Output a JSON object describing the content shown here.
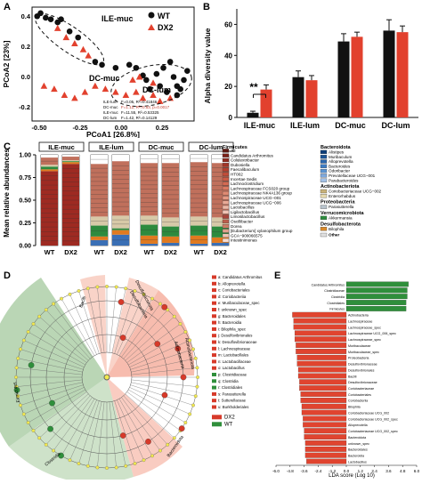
{
  "panels": {
    "A": {
      "letter": "A",
      "xlabel": "PCoA1 [26.8%]",
      "ylabel": "PCoA2 [23%]",
      "xticks": [
        "-0.50",
        "-0.25",
        "0.00",
        "0.25"
      ],
      "yticks": [
        "0.4",
        "0.2",
        "0.0",
        "-0.2"
      ],
      "legend": [
        {
          "name": "WT",
          "marker": "circle",
          "color": "#111111"
        },
        {
          "name": "DX2",
          "marker": "triangle",
          "color": "#e2412e"
        }
      ],
      "group_labels": [
        "ILE-muc",
        "DC-muc",
        "DC-lum"
      ],
      "stats": [
        {
          "name": "ILE-lum",
          "text": "F=0.05, R²=0.41846"
        },
        {
          "name": "DC-muc",
          "text": "F=1.12, R²=0.53, p=0.0017"
        },
        {
          "name": "ILE-muc",
          "text": "F=11.55, R²=0.53325"
        },
        {
          "name": "DC-lum",
          "text": "F=1.42, R²=0.14129"
        }
      ],
      "wt_points": [
        [
          -0.52,
          0.44
        ],
        [
          -0.5,
          0.46
        ],
        [
          -0.47,
          0.43
        ],
        [
          -0.44,
          0.42
        ],
        [
          -0.4,
          0.4
        ],
        [
          -0.38,
          0.42
        ],
        [
          -0.33,
          0.34
        ],
        [
          -0.28,
          0.3
        ],
        [
          -0.18,
          0.14
        ],
        [
          -0.14,
          0.12
        ],
        [
          -0.06,
          0.1
        ],
        [
          0.02,
          0.12
        ],
        [
          0.06,
          0.1
        ],
        [
          0.1,
          0.05
        ],
        [
          0.12,
          0.02
        ],
        [
          0.18,
          0.06
        ],
        [
          0.22,
          0.1
        ],
        [
          0.26,
          0.14
        ],
        [
          0.28,
          0.04
        ],
        [
          0.3,
          -0.02
        ],
        [
          0.32,
          -0.04
        ],
        [
          0.34,
          0.02
        ],
        [
          0.36,
          0.08
        ],
        [
          0.3,
          -0.08
        ],
        [
          0.2,
          -0.02
        ],
        [
          0.14,
          -0.04
        ],
        [
          0.24,
          -0.06
        ]
      ],
      "dx2_points": [
        [
          -0.35,
          0.3
        ],
        [
          -0.3,
          0.26
        ],
        [
          -0.25,
          0.22
        ],
        [
          -0.22,
          0.18
        ],
        [
          -0.4,
          0.36
        ],
        [
          -0.48,
          -0.02
        ],
        [
          -0.42,
          -0.04
        ],
        [
          -0.36,
          -0.08
        ],
        [
          -0.3,
          -0.1
        ],
        [
          -0.24,
          -0.06
        ],
        [
          -0.18,
          -0.02
        ],
        [
          -0.12,
          -0.04
        ],
        [
          -0.06,
          -0.06
        ],
        [
          0.0,
          -0.08
        ],
        [
          0.06,
          -0.06
        ],
        [
          0.1,
          -0.1
        ],
        [
          0.16,
          -0.08
        ],
        [
          0.2,
          -0.12
        ],
        [
          0.26,
          -0.1
        ],
        [
          0.04,
          0.02
        ],
        [
          0.08,
          0.04
        ],
        [
          0.16,
          0.0
        ]
      ]
    },
    "B": {
      "letter": "B",
      "ylabel": "Alpha diversity value",
      "yticks": [
        "0",
        "20",
        "40",
        "60"
      ],
      "ylim": [
        0,
        70
      ],
      "significance": "**"
    },
    "C": {
      "letter": "C",
      "ylabel": "Mean relative abundances",
      "yticks": [
        "1.00",
        "0.75",
        "0.50",
        "0.25",
        "0.00"
      ],
      "group_labels": [
        "ILE-muc",
        "ILE-lum",
        "DC-muc",
        "DC-lum"
      ],
      "bar_labels": [
        "WT",
        "DX2",
        "WT",
        "DX2",
        "WT",
        "DX2",
        "WT",
        "DX2"
      ],
      "legend_col1_title": "Firmicutes",
      "legend_col1": [
        "A2",
        "Candidatus Arthromitus",
        "Colidextribacter",
        "Dubosiella",
        "Faecalibaculum",
        "HT002",
        "Incertae Sedis",
        "Lachnoclostridium",
        "Lachnospiraceae FCS020 group",
        "Lachnospiraceae NK4A136 group",
        "Lachnospiraceae UCG−001",
        "Lachnospiraceae UCG−006",
        "Lactobacillus",
        "Ligilactobacillus",
        "Limosilactobacillus",
        "Oscillibacter",
        "Dorea",
        "[Eubacterium] xylanophilum group",
        "GCA−900066575",
        "Intestinimonas"
      ],
      "legend_col2": [
        {
          "title": "Bacteroidota",
          "items": [
            "Alistipes",
            "Muribaculum",
            "Alloprevotella",
            "Bacteroides",
            "Odoribacter",
            "Prevotellaceae UCG−001",
            "Parabacteroides"
          ]
        },
        {
          "title": "Actinobacteriota",
          "items": [
            "Coriobacteriaceae UCG−002",
            "Enterorhabdus"
          ]
        },
        {
          "title": "Proteobacteria",
          "items": [
            "Parasutterella"
          ]
        },
        {
          "title": "Verrucomicrobiota",
          "items": [
            "Akkermansia"
          ]
        },
        {
          "title": "Desulfobacterota",
          "items": [
            "Bilophila"
          ]
        },
        {
          "title": "",
          "items": [
            "Other"
          ]
        }
      ]
    },
    "D": {
      "letter": "D",
      "clade_legend": [
        "a: Candidatus Arthromitus",
        "b: Alloprevotella",
        "c: Coriobacteriales",
        "d: Coriobacteriia",
        "e: Muribaculaceae_spec",
        "f: unknown_spec",
        "g: Bacteroidales",
        "h: Bacteroidia",
        "i: Bilophila_spec",
        "j: Desulfovibrionales",
        "k: Desulfovibrionaceae",
        "l: Lachnospiraceae",
        "m: Lactobacillales",
        "n: Lactobacillaceae",
        "o: Lactobacillus",
        "p: Clostridiaceae",
        "q: Clostridia",
        "r: Clostridiales",
        "s: Parasutterella",
        "t: Sutterellaceae",
        "u: Burkholderiales"
      ],
      "ring_labels": [
        "Bacilli",
        "Desulfobacteria",
        "Desulfobacterota",
        "Actinobacteria",
        "Actinobacteriota",
        "Bacteroidota",
        "Firmicutes",
        "Clostridia"
      ],
      "groups": [
        {
          "name": "DX2",
          "color": "#d73a2a"
        },
        {
          "name": "WT",
          "color": "#2f8f3b"
        }
      ]
    },
    "E": {
      "letter": "E",
      "xlabel": "LDA score (Log 10)",
      "xticks": [
        "-6.0",
        "-4.8",
        "-3.6",
        "-2.4",
        "-1.2",
        "0.0",
        "1.2",
        "2.4",
        "3.6",
        "4.8",
        "6.0"
      ]
    }
  },
  "chart_data": [
    {
      "type": "scatter",
      "title": "",
      "xlabel": "PCoA1 [26.8%]",
      "ylabel": "PCoA2 [23%]",
      "xlim": [
        -0.55,
        0.4
      ],
      "ylim": [
        -0.25,
        0.5
      ],
      "series": [
        {
          "name": "WT",
          "color": "#111111"
        },
        {
          "name": "DX2",
          "color": "#e2412e"
        }
      ]
    },
    {
      "type": "bar",
      "categories": [
        "ILE-muc",
        "ILE-lum",
        "DC-muc",
        "DC-lum"
      ],
      "ylabel": "Alpha diversity value",
      "ylim": [
        0,
        70
      ],
      "series": [
        {
          "name": "WT",
          "color": "#111111",
          "values": [
            3,
            26,
            49,
            56
          ],
          "errors": [
            1,
            4,
            5,
            7
          ]
        },
        {
          "name": "DX2",
          "color": "#e2412e",
          "values": [
            18,
            24,
            52,
            55
          ],
          "errors": [
            3,
            3,
            3,
            4
          ]
        }
      ]
    },
    {
      "type": "bar",
      "stacked": true,
      "ylabel": "Mean relative abundances",
      "ylim": [
        0,
        1
      ],
      "categories": [
        "ILE-muc WT",
        "ILE-muc DX2",
        "ILE-lum WT",
        "ILE-lum DX2",
        "DC-muc WT",
        "DC-muc DX2",
        "DC-lum WT",
        "DC-lum DX2"
      ],
      "segments": [
        {
          "color": "#9e2a22",
          "values": [
            0.82,
            0.9,
            0.0,
            0.0,
            0.0,
            0.0,
            0.0,
            0.0
          ]
        },
        {
          "color": "#3a6fb5",
          "values": [
            0.0,
            0.0,
            0.06,
            0.12,
            0.02,
            0.03,
            0.02,
            0.03
          ]
        },
        {
          "color": "#e07a1f",
          "values": [
            0.02,
            0.02,
            0.04,
            0.05,
            0.09,
            0.07,
            0.09,
            0.06
          ]
        },
        {
          "color": "#2d8a3e",
          "values": [
            0.03,
            0.01,
            0.12,
            0.02,
            0.12,
            0.11,
            0.11,
            0.12
          ]
        },
        {
          "color": "#d7c9a8",
          "values": [
            0.02,
            0.01,
            0.1,
            0.14,
            0.1,
            0.1,
            0.1,
            0.1
          ]
        },
        {
          "color": "#c0705c",
          "values": [
            0.08,
            0.04,
            0.58,
            0.6,
            0.58,
            0.6,
            0.6,
            0.6
          ]
        },
        {
          "color": "#ffffff",
          "values": [
            0.03,
            0.02,
            0.1,
            0.07,
            0.09,
            0.09,
            0.08,
            0.09
          ]
        }
      ]
    },
    {
      "type": "bar",
      "orientation": "horizontal",
      "xlabel": "LDA score (Log 10)",
      "xlim": [
        -6,
        6
      ],
      "categories": [
        "Candidatus Arthromitus",
        "Clostridiaceae",
        "Clostridia",
        "Clostridiales",
        "Firmicutes",
        "Actinobacteria",
        "Lachnospiraceae",
        "Lachnospiraceae_spec",
        "Lachnospiraceae UCG_006_spec",
        "Lachnospiraceae_spec",
        "Muribaculaceae",
        "Muribaculaceae_spec",
        "Proteobacteria",
        "Desulfovibrionaceae",
        "Desulfovibrionales",
        "Bacilli",
        "Desulfovibrionaceae",
        "Coriobacteriaceae",
        "Coriobacteriales",
        "Coriobacteriia",
        "Bilophila",
        "Coriobacteriaceae UCG_002",
        "Coriobacteriaceae UCG_002_spec",
        "Alloprevotella",
        "Coriobacteriaceae UCG_002_spec",
        "Bacteroidota",
        "unknown_spec",
        "Bacteroidales",
        "Bacteroidia",
        "Lactobacillus"
      ],
      "values": [
        5.3,
        5.2,
        5.2,
        5.1,
        5.1,
        -4.6,
        -4.5,
        -4.5,
        -4.4,
        -4.4,
        -4.3,
        -4.3,
        -4.2,
        -4.2,
        -4.1,
        -4.1,
        -4.0,
        -4.0,
        -3.9,
        -3.9,
        -3.8,
        -3.8,
        -3.7,
        -3.7,
        -3.6,
        -3.6,
        -3.5,
        -3.5,
        -3.5,
        -3.4
      ]
    }
  ]
}
